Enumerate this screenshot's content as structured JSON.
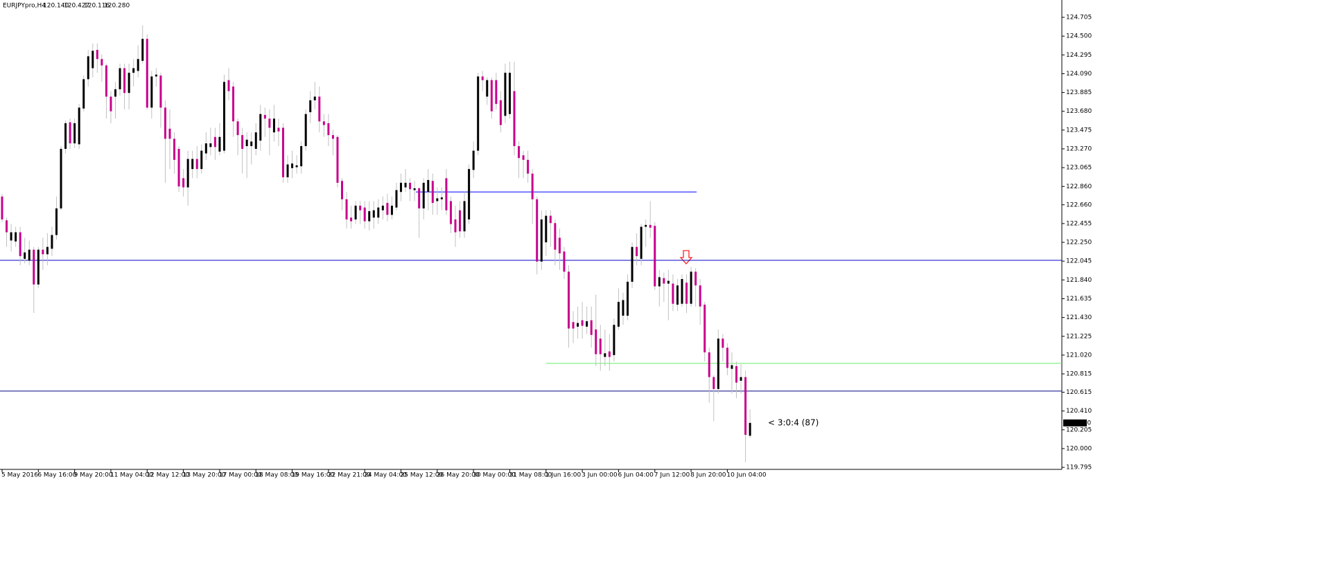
{
  "chart_data": {
    "type": "candlestick",
    "title": "EURJPYpro,H4",
    "header_values": [
      "120.140",
      "120.427",
      "120.116",
      "120.280"
    ],
    "categories": [
      "5 May 2016",
      null,
      null,
      null,
      null,
      null,
      null,
      null,
      "6 May 16:00",
      null,
      null,
      null,
      null,
      null,
      null,
      null,
      "9 May 20:00",
      null,
      null,
      null,
      null,
      null,
      null,
      null,
      "11 May 04:00",
      null,
      null,
      null,
      null,
      null,
      null,
      null,
      "12 May 12:00",
      null,
      null,
      null,
      null,
      null,
      null,
      null,
      "13 May 20:00",
      null,
      null,
      null,
      null,
      null,
      null,
      null,
      "17 May 00:00",
      null,
      null,
      null,
      null,
      null,
      null,
      null,
      "18 May 08:00",
      null,
      null,
      null,
      null,
      null,
      null,
      null,
      "19 May 16:00",
      null,
      null,
      null,
      null,
      null,
      null,
      null,
      "22 May 21:00",
      null,
      null,
      null,
      null,
      null,
      null,
      null,
      "24 May 04:00",
      null,
      null,
      null,
      null,
      null,
      null,
      null,
      "25 May 12:00",
      null,
      null,
      null,
      null,
      null,
      null,
      null,
      "26 May 20:00",
      null,
      null,
      null,
      null,
      null,
      null,
      null,
      "30 May 00:00",
      null,
      null,
      null,
      null,
      null,
      null,
      null,
      "31 May 08:00",
      null,
      null,
      null,
      null,
      null,
      null,
      null,
      "1 Jun 16:00",
      null,
      null,
      null,
      null,
      null,
      null,
      null,
      "3 Jun 00:00",
      null,
      null,
      null,
      null,
      null,
      null,
      null,
      "6 Jun 04:00",
      null,
      null,
      null,
      null,
      null,
      null,
      null,
      "7 Jun 12:00",
      null,
      null,
      null,
      null,
      null,
      null,
      null,
      "8 Jun 20:00",
      null,
      null,
      null,
      null,
      null,
      null,
      null,
      "10 Jun 04:00",
      null,
      null,
      null,
      null,
      null
    ],
    "open": [
      122.75,
      122.49,
      122.27,
      122.26,
      122.36,
      122.07,
      122.05,
      122.17,
      121.79,
      122.17,
      122.12,
      122.18,
      122.33,
      122.62,
      123.27,
      123.56,
      123.33,
      123.32,
      123.71,
      124.03,
      124.15,
      124.35,
      124.25,
      124.18,
      123.84,
      123.84,
      123.92,
      124.15,
      123.88,
      124.1,
      124.12,
      124.23,
      124.47,
      123.72,
      124.06,
      124.07,
      123.72,
      123.49,
      123.38,
      123.27,
      122.95,
      122.85,
      123.05,
      123.16,
      123.05,
      123.22,
      123.29,
      123.4,
      123.24,
      123.25,
      124.02,
      123.95,
      123.57,
      123.42,
      123.3,
      123.3,
      123.27,
      123.36,
      123.64,
      123.6,
      123.45,
      123.5,
      123.5,
      122.96,
      123.06,
      123.07,
      123.08,
      123.3,
      123.67,
      123.8,
      123.84,
      123.57,
      123.55,
      123.42,
      123.4,
      122.92,
      122.72,
      122.52,
      122.5,
      122.65,
      122.63,
      122.48,
      122.52,
      122.52,
      122.6,
      122.68,
      122.55,
      122.63,
      122.8,
      122.85,
      122.9,
      122.82,
      122.84,
      122.62,
      122.8,
      122.92,
      122.7,
      122.72,
      122.95,
      122.7,
      122.5,
      122.6,
      122.37,
      122.5,
      123.04,
      123.25,
      124.06,
      123.84,
      124.02,
      124.02,
      123.8,
      123.63,
      123.65,
      123.9,
      123.3,
      123.2,
      123.15,
      123.0,
      122.72,
      122.04,
      122.25,
      122.54,
      122.46,
      122.3,
      122.15,
      121.93,
      121.38,
      121.33,
      121.4,
      121.33,
      121.4,
      121.3,
      121.2,
      121.0,
      121.06,
      121.02,
      121.33,
      121.45,
      121.45,
      121.82,
      122.2,
      122.07,
      122.42,
      122.44,
      122.43,
      121.77,
      121.86,
      121.8,
      121.8,
      121.57,
      121.58,
      121.81,
      121.58,
      121.93,
      121.78,
      121.57,
      121.05,
      120.78,
      120.65,
      121.2,
      121.1,
      120.87,
      120.9,
      120.74,
      120.78,
      120.14
    ],
    "high": [
      122.78,
      122.52,
      122.45,
      122.42,
      122.42,
      122.3,
      122.27,
      122.2,
      122.2,
      122.3,
      122.35,
      122.42,
      122.75,
      123.3,
      123.58,
      123.6,
      123.6,
      123.76,
      124.07,
      124.35,
      124.42,
      124.42,
      124.3,
      124.2,
      123.9,
      124.0,
      124.2,
      124.2,
      124.2,
      124.25,
      124.4,
      124.62,
      124.52,
      124.12,
      124.15,
      124.1,
      123.8,
      123.7,
      123.45,
      123.3,
      123.05,
      123.25,
      123.25,
      123.3,
      123.32,
      123.45,
      123.5,
      123.5,
      123.55,
      124.08,
      124.15,
      124.0,
      123.6,
      123.5,
      123.45,
      123.45,
      123.55,
      123.75,
      123.72,
      123.7,
      123.75,
      123.6,
      123.55,
      123.2,
      123.25,
      123.2,
      123.35,
      123.7,
      123.9,
      124.0,
      123.95,
      123.65,
      123.65,
      123.48,
      123.42,
      122.95,
      122.8,
      122.65,
      122.7,
      122.7,
      122.7,
      122.7,
      122.7,
      122.72,
      122.75,
      122.78,
      122.75,
      122.9,
      123.0,
      123.05,
      122.95,
      122.92,
      122.85,
      122.95,
      123.05,
      123.0,
      122.85,
      122.85,
      123.05,
      122.75,
      122.65,
      122.7,
      122.8,
      123.1,
      123.35,
      124.1,
      124.12,
      124.05,
      124.05,
      124.1,
      123.9,
      124.2,
      124.22,
      124.22,
      123.35,
      123.25,
      123.25,
      123.05,
      122.75,
      122.6,
      122.6,
      122.6,
      122.5,
      122.4,
      122.2,
      122.0,
      121.5,
      121.55,
      121.6,
      121.55,
      121.55,
      121.68,
      121.35,
      121.3,
      121.25,
      121.42,
      121.75,
      121.7,
      121.9,
      122.25,
      122.35,
      122.45,
      122.5,
      122.7,
      122.47,
      121.95,
      121.92,
      121.95,
      121.9,
      121.85,
      121.9,
      121.9,
      121.98,
      121.97,
      121.85,
      121.6,
      121.1,
      120.8,
      121.3,
      121.25,
      121.15,
      121.05,
      120.95,
      120.92,
      120.85,
      120.427
    ],
    "low": [
      122.47,
      122.2,
      122.15,
      122.2,
      122.0,
      122.02,
      122.0,
      121.48,
      121.75,
      121.95,
      122.0,
      122.1,
      122.28,
      122.6,
      123.22,
      123.27,
      123.28,
      123.27,
      123.68,
      123.95,
      124.05,
      124.1,
      124.0,
      123.6,
      123.55,
      123.6,
      123.85,
      123.7,
      123.7,
      123.95,
      124.05,
      124.2,
      123.7,
      123.6,
      123.95,
      123.5,
      122.9,
      123.05,
      123.0,
      122.8,
      122.75,
      122.65,
      122.95,
      122.95,
      123.0,
      123.15,
      123.2,
      123.15,
      123.2,
      123.22,
      123.8,
      123.4,
      123.2,
      123.0,
      122.95,
      123.1,
      123.2,
      123.25,
      123.4,
      123.2,
      123.35,
      123.3,
      122.9,
      122.9,
      122.95,
      123.0,
      123.0,
      123.25,
      123.55,
      123.7,
      123.45,
      123.4,
      123.3,
      123.2,
      122.85,
      122.6,
      122.4,
      122.4,
      122.45,
      122.45,
      122.4,
      122.38,
      122.4,
      122.45,
      122.5,
      122.48,
      122.5,
      122.6,
      122.7,
      122.8,
      122.7,
      122.7,
      122.3,
      122.5,
      122.6,
      122.55,
      122.55,
      122.6,
      122.55,
      122.35,
      122.2,
      122.3,
      122.3,
      122.45,
      122.95,
      123.2,
      123.9,
      123.75,
      123.6,
      123.7,
      123.45,
      123.55,
      123.6,
      123.2,
      122.95,
      122.95,
      122.9,
      122.45,
      121.9,
      121.95,
      122.1,
      122.2,
      122.0,
      121.95,
      121.85,
      121.1,
      121.15,
      121.2,
      121.2,
      121.25,
      121.1,
      120.9,
      120.85,
      120.9,
      120.85,
      120.95,
      121.3,
      121.35,
      121.4,
      121.75,
      122.0,
      122.0,
      122.2,
      122.3,
      121.73,
      121.55,
      121.6,
      121.4,
      121.5,
      121.5,
      121.55,
      121.48,
      121.55,
      121.55,
      121.35,
      120.95,
      120.5,
      120.3,
      120.6,
      120.95,
      120.8,
      120.6,
      120.55,
      120.6,
      119.85,
      120.116
    ],
    "close": [
      122.5,
      122.36,
      122.36,
      122.36,
      122.1,
      122.14,
      122.17,
      121.79,
      122.17,
      122.12,
      122.2,
      122.33,
      122.62,
      123.27,
      123.55,
      123.33,
      123.55,
      123.72,
      124.03,
      124.28,
      124.34,
      124.25,
      124.18,
      123.84,
      123.68,
      123.92,
      124.15,
      123.88,
      124.1,
      124.15,
      124.25,
      124.47,
      123.72,
      124.06,
      124.08,
      123.72,
      123.38,
      123.38,
      123.15,
      122.86,
      122.85,
      123.16,
      123.16,
      123.05,
      123.25,
      123.33,
      123.33,
      123.29,
      123.4,
      124.0,
      123.9,
      123.57,
      123.42,
      123.27,
      123.37,
      123.35,
      123.45,
      123.65,
      123.6,
      123.5,
      123.6,
      123.46,
      122.96,
      123.1,
      123.11,
      123.09,
      123.3,
      123.65,
      123.8,
      123.84,
      123.57,
      123.53,
      123.42,
      123.38,
      122.9,
      122.72,
      122.5,
      122.48,
      122.65,
      122.6,
      122.48,
      122.59,
      122.6,
      122.63,
      122.65,
      122.55,
      122.65,
      122.82,
      122.9,
      122.9,
      122.83,
      122.84,
      122.62,
      122.9,
      122.93,
      122.68,
      122.73,
      122.74,
      122.6,
      122.45,
      122.36,
      122.37,
      122.7,
      123.05,
      123.25,
      124.06,
      124.02,
      124.02,
      123.68,
      123.76,
      123.53,
      124.1,
      124.1,
      123.3,
      123.17,
      123.15,
      123.0,
      122.72,
      122.04,
      122.5,
      122.54,
      122.46,
      122.17,
      122.13,
      121.93,
      121.31,
      121.31,
      121.37,
      121.34,
      121.39,
      121.24,
      121.03,
      121.03,
      121.04,
      121.0,
      121.35,
      121.6,
      121.62,
      121.82,
      122.2,
      122.1,
      122.42,
      122.44,
      122.41,
      121.77,
      121.87,
      121.8,
      121.83,
      121.58,
      121.78,
      121.85,
      121.58,
      121.93,
      121.78,
      121.55,
      121.05,
      120.78,
      120.65,
      121.2,
      121.1,
      120.88,
      120.91,
      120.72,
      120.78,
      120.15,
      120.28
    ],
    "up_color": "#000000",
    "down_color": "#c8008c",
    "wick_color": "#c0c0c0",
    "ylim": [
      119.773,
      124.894
    ],
    "yticks": [
      124.705,
      {
        "value": 124.5,
        "label": "124.500"
      },
      124.295,
      {
        "value": 124.09,
        "label": "124.090"
      },
      123.885,
      {
        "value": 123.68,
        "label": "123.680"
      },
      123.475,
      {
        "value": 123.27,
        "label": "123.270"
      },
      123.065,
      {
        "value": 122.86,
        "label": "122.860"
      },
      {
        "value": 122.66,
        "label": "122.660"
      },
      122.455,
      {
        "value": 122.25,
        "label": "122.250"
      },
      122.045,
      {
        "value": 121.84,
        "label": "121.840"
      },
      121.635,
      {
        "value": 121.43,
        "label": "121.430"
      },
      121.225,
      {
        "value": 121.02,
        "label": "121.020"
      },
      120.815,
      120.615,
      {
        "value": 120.41,
        "label": "120.410"
      },
      120.205,
      {
        "value": 120,
        "label": "120.000"
      },
      119.795
    ],
    "last_price": {
      "value": 120.28,
      "label": "120.280"
    },
    "hlines": [
      {
        "value": 122.8,
        "color": "#0000ff"
      },
      {
        "value": 122.054,
        "color": "#0000c8"
      },
      {
        "value": 120.627,
        "color": "#000080"
      },
      {
        "value": 120.93,
        "color": "#66ee66"
      }
    ],
    "annotation": "< 3:0:4 (87)",
    "annotation_color": "#ff3333"
  }
}
